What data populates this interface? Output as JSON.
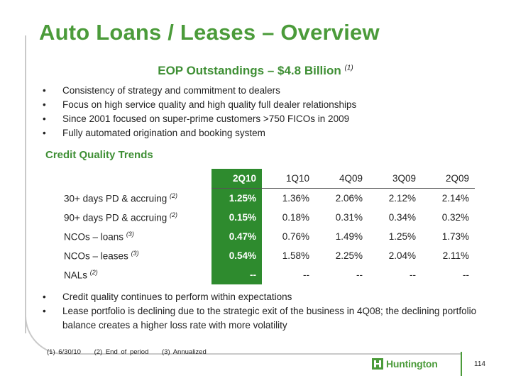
{
  "title": "Auto Loans / Leases – Overview",
  "subtitle": {
    "text": "EOP Outstandings – $4.8 Billion",
    "note": "(1)"
  },
  "bullets_top": [
    "Consistency of strategy and commitment to dealers",
    "Focus on high service quality and high quality full dealer relationships",
    "Since 2001 focused on super-prime customers >750 FICOs in 2009",
    "Fully automated origination and booking system"
  ],
  "section_heading": "Credit Quality Trends",
  "table": {
    "columns": [
      "2Q10",
      "1Q10",
      "4Q09",
      "3Q09",
      "2Q09"
    ],
    "rows": [
      {
        "label": "30+ days PD & accruing",
        "note": "(2)",
        "values": [
          "1.25%",
          "1.36%",
          "2.06%",
          "2.12%",
          "2.14%"
        ]
      },
      {
        "label": "90+ days PD & accruing",
        "note": "(2)",
        "values": [
          "0.15%",
          "0.18%",
          "0.31%",
          "0.34%",
          "0.32%"
        ]
      },
      {
        "label": "NCOs – loans",
        "note": "(3)",
        "values": [
          "0.47%",
          "0.76%",
          "1.49%",
          "1.25%",
          "1.73%"
        ]
      },
      {
        "label": "NCOs – leases",
        "note": "(3)",
        "values": [
          "0.54%",
          "1.58%",
          "2.25%",
          "2.04%",
          "2.11%"
        ]
      },
      {
        "label": "NALs",
        "note": "(2)",
        "values": [
          "--",
          "--",
          "--",
          "--",
          "--"
        ]
      }
    ]
  },
  "bullets_bottom": [
    "Credit quality continues to perform within expectations",
    "Lease portfolio is declining due to the strategic exit of the business in 4Q08; the declining portfolio balance creates a higher loss rate with more volatility"
  ],
  "bullet_char": "•",
  "footnotes": [
    "(1) 6/30/10",
    "(2) End of period",
    "(3) Annualized"
  ],
  "logo_text": "Huntington",
  "page_number": "114",
  "colors": {
    "accent_green": "#4b9b3a",
    "highlight_column": "#2e8b2e"
  }
}
